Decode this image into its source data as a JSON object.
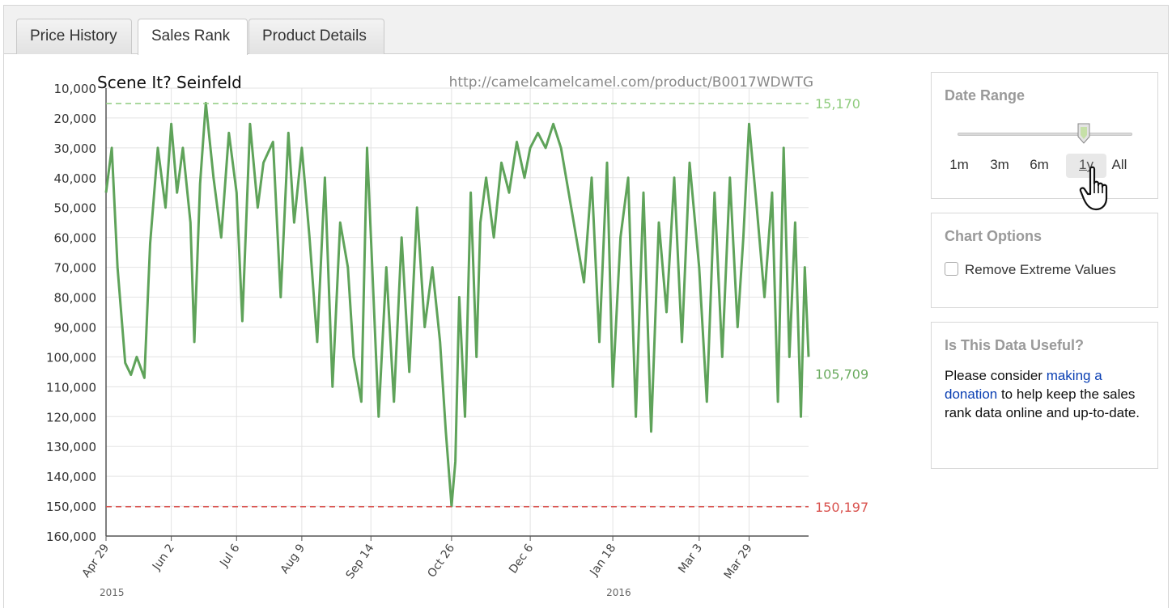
{
  "tabs": [
    {
      "label": "Price History",
      "active": false
    },
    {
      "label": "Sales Rank",
      "active": true
    },
    {
      "label": "Product Details",
      "active": false
    }
  ],
  "chart_data": {
    "type": "line",
    "title": "Scene It? Seinfeld",
    "source_url": "http://camelcamelcamel.com/product/B0017WDWTG",
    "y_inverted": true,
    "ylim": [
      10000,
      160000
    ],
    "y_ticks": [
      "10,000",
      "20,000",
      "30,000",
      "40,000",
      "50,000",
      "60,000",
      "70,000",
      "80,000",
      "90,000",
      "100,000",
      "110,000",
      "120,000",
      "130,000",
      "140,000",
      "150,000",
      "160,000"
    ],
    "y_tick_values": [
      10000,
      20000,
      30000,
      40000,
      50000,
      60000,
      70000,
      80000,
      90000,
      100000,
      110000,
      120000,
      130000,
      140000,
      150000,
      160000
    ],
    "x_ticks": [
      "Apr 29",
      "Jun 2",
      "Jul 6",
      "Aug 9",
      "Sep 14",
      "Oct 26",
      "Dec 6",
      "Jan 18",
      "Mar 3",
      "Mar 29"
    ],
    "x_tick_dates": [
      "2015-04-29",
      "2015-06-02",
      "2015-07-06",
      "2015-08-09",
      "2015-09-14",
      "2015-10-26",
      "2015-12-06",
      "2016-01-18",
      "2016-03-03",
      "2016-03-29"
    ],
    "xlim": [
      "2015-04-29",
      "2016-04-29"
    ],
    "year_labels": [
      {
        "label": "2015",
        "date": "2015-04-29"
      },
      {
        "label": "2016",
        "date": "2016-01-18"
      }
    ],
    "reference_lines": [
      {
        "label": "15,170",
        "value": 15170,
        "color": "#8fcc7e",
        "style": "dashed"
      },
      {
        "label": "105,709",
        "value": 105709,
        "color": "#6aab5f",
        "style": "none"
      },
      {
        "label": "150,197",
        "value": 150197,
        "color": "#d9534f",
        "style": "dashed"
      }
    ],
    "series": [
      {
        "color": "#5fa35a",
        "points": [
          [
            "2015-04-29",
            45000
          ],
          [
            "2015-05-02",
            30000
          ],
          [
            "2015-05-05",
            70000
          ],
          [
            "2015-05-09",
            102000
          ],
          [
            "2015-05-12",
            106000
          ],
          [
            "2015-05-15",
            100000
          ],
          [
            "2015-05-19",
            107000
          ],
          [
            "2015-05-22",
            62000
          ],
          [
            "2015-05-26",
            30000
          ],
          [
            "2015-05-30",
            50000
          ],
          [
            "2015-06-02",
            22000
          ],
          [
            "2015-06-05",
            45000
          ],
          [
            "2015-06-08",
            30000
          ],
          [
            "2015-06-12",
            55000
          ],
          [
            "2015-06-14",
            95000
          ],
          [
            "2015-06-17",
            42000
          ],
          [
            "2015-06-20",
            15000
          ],
          [
            "2015-06-24",
            40000
          ],
          [
            "2015-06-28",
            60000
          ],
          [
            "2015-07-02",
            25000
          ],
          [
            "2015-07-06",
            45000
          ],
          [
            "2015-07-09",
            88000
          ],
          [
            "2015-07-13",
            22000
          ],
          [
            "2015-07-17",
            50000
          ],
          [
            "2015-07-20",
            35000
          ],
          [
            "2015-07-25",
            28000
          ],
          [
            "2015-07-29",
            80000
          ],
          [
            "2015-08-02",
            25000
          ],
          [
            "2015-08-05",
            55000
          ],
          [
            "2015-08-09",
            30000
          ],
          [
            "2015-08-13",
            60000
          ],
          [
            "2015-08-17",
            95000
          ],
          [
            "2015-08-21",
            40000
          ],
          [
            "2015-08-25",
            110000
          ],
          [
            "2015-08-29",
            55000
          ],
          [
            "2015-09-02",
            70000
          ],
          [
            "2015-09-05",
            100000
          ],
          [
            "2015-09-09",
            115000
          ],
          [
            "2015-09-12",
            30000
          ],
          [
            "2015-09-14",
            60000
          ],
          [
            "2015-09-18",
            120000
          ],
          [
            "2015-09-22",
            70000
          ],
          [
            "2015-09-26",
            115000
          ],
          [
            "2015-09-30",
            60000
          ],
          [
            "2015-10-04",
            105000
          ],
          [
            "2015-10-08",
            50000
          ],
          [
            "2015-10-12",
            90000
          ],
          [
            "2015-10-16",
            70000
          ],
          [
            "2015-10-20",
            95000
          ],
          [
            "2015-10-23",
            125000
          ],
          [
            "2015-10-26",
            150000
          ],
          [
            "2015-10-28",
            135000
          ],
          [
            "2015-10-30",
            80000
          ],
          [
            "2015-11-02",
            120000
          ],
          [
            "2015-11-05",
            45000
          ],
          [
            "2015-11-08",
            100000
          ],
          [
            "2015-11-10",
            55000
          ],
          [
            "2015-11-13",
            40000
          ],
          [
            "2015-11-17",
            60000
          ],
          [
            "2015-11-21",
            35000
          ],
          [
            "2015-11-25",
            45000
          ],
          [
            "2015-11-29",
            28000
          ],
          [
            "2015-12-03",
            40000
          ],
          [
            "2015-12-06",
            30000
          ],
          [
            "2015-12-10",
            25000
          ],
          [
            "2015-12-14",
            30000
          ],
          [
            "2015-12-18",
            22000
          ],
          [
            "2015-12-22",
            30000
          ],
          [
            "2015-12-26",
            45000
          ],
          [
            "2015-12-30",
            60000
          ],
          [
            "2016-01-03",
            75000
          ],
          [
            "2016-01-07",
            40000
          ],
          [
            "2016-01-11",
            95000
          ],
          [
            "2016-01-15",
            35000
          ],
          [
            "2016-01-18",
            110000
          ],
          [
            "2016-01-22",
            60000
          ],
          [
            "2016-01-26",
            40000
          ],
          [
            "2016-01-30",
            120000
          ],
          [
            "2016-02-03",
            45000
          ],
          [
            "2016-02-07",
            125000
          ],
          [
            "2016-02-11",
            55000
          ],
          [
            "2016-02-15",
            85000
          ],
          [
            "2016-02-19",
            40000
          ],
          [
            "2016-02-23",
            95000
          ],
          [
            "2016-02-27",
            35000
          ],
          [
            "2016-03-03",
            70000
          ],
          [
            "2016-03-07",
            115000
          ],
          [
            "2016-03-11",
            45000
          ],
          [
            "2016-03-15",
            100000
          ],
          [
            "2016-03-19",
            40000
          ],
          [
            "2016-03-23",
            90000
          ],
          [
            "2016-03-26",
            60000
          ],
          [
            "2016-03-29",
            22000
          ],
          [
            "2016-04-02",
            50000
          ],
          [
            "2016-04-06",
            80000
          ],
          [
            "2016-04-10",
            45000
          ],
          [
            "2016-04-13",
            115000
          ],
          [
            "2016-04-16",
            30000
          ],
          [
            "2016-04-19",
            100000
          ],
          [
            "2016-04-22",
            55000
          ],
          [
            "2016-04-25",
            120000
          ],
          [
            "2016-04-27",
            70000
          ],
          [
            "2016-04-29",
            100000
          ]
        ]
      }
    ],
    "grid": true
  },
  "date_range": {
    "title": "Date Range",
    "options": [
      "1m",
      "3m",
      "6m",
      "1y",
      "All"
    ],
    "selected": "1y"
  },
  "chart_options": {
    "title": "Chart Options",
    "remove_extreme_label": "Remove Extreme Values",
    "remove_extreme_checked": false
  },
  "useful": {
    "title": "Is This Data Useful?",
    "text_before": "Please consider ",
    "link_text": "making a donation",
    "text_after": " to help keep the sales rank data online and up-to-date."
  },
  "colors": {
    "series": "#5fa35a",
    "min_line": "#8fcc7e",
    "max_line": "#d9534f",
    "link": "#0a3fb3"
  }
}
